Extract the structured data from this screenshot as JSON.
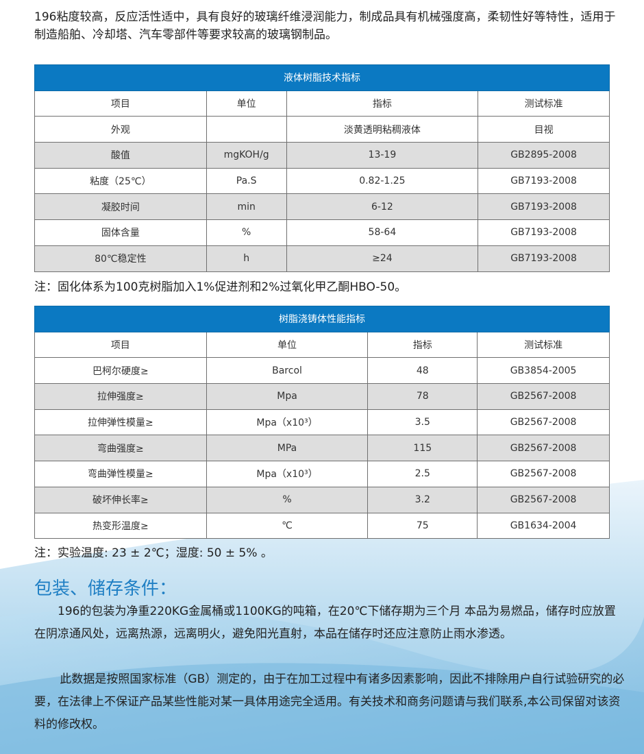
{
  "intro": "196粘度较高，反应活性适中，具有良好的玻璃纤维浸润能力，制成品具有机械强度高，柔韧性好等特性，适用于制造船舶、冷却塔、汽车零部件等要求较高的玻璃钢制品。",
  "table1": {
    "title": "液体树脂技术指标",
    "headers": [
      "项目",
      "单位",
      "指标",
      "测试标准"
    ],
    "rows": [
      [
        "外观",
        "",
        "淡黄透明粘稠液体",
        "目视"
      ],
      [
        "酸值",
        "mgKOH/g",
        "13-19",
        "GB2895-2008"
      ],
      [
        "粘度（25℃）",
        "Pa.S",
        "0.82-1.25",
        "GB7193-2008"
      ],
      [
        "凝胶时间",
        "min",
        "6-12",
        "GB7193-2008"
      ],
      [
        "固体含量",
        "%",
        "58-64",
        "GB7193-2008"
      ],
      [
        "80℃稳定性",
        "h",
        "≥24",
        "GB7193-2008"
      ]
    ]
  },
  "note1": "注：固化体系为100克树脂加入1%促进剂和2%过氧化甲乙酮HBO-50。",
  "table2": {
    "title": "树脂浇铸体性能指标",
    "headers": [
      "项目",
      "单位",
      "指标",
      "测试标准"
    ],
    "rows": [
      [
        "巴柯尔硬度≥",
        "Barcol",
        "48",
        "GB3854-2005"
      ],
      [
        "拉伸强度≥",
        "Mpa",
        "78",
        "GB2567-2008"
      ],
      [
        "拉伸弹性模量≥",
        "Mpa（x10³）",
        "3.5",
        "GB2567-2008"
      ],
      [
        "弯曲强度≥",
        "MPa",
        "115",
        "GB2567-2008"
      ],
      [
        "弯曲弹性模量≥",
        "Mpa（x10³）",
        "2.5",
        "GB2567-2008"
      ],
      [
        "破坏伸长率≥",
        "%",
        "3.2",
        "GB2567-2008"
      ],
      [
        "热变形温度≥",
        "℃",
        "75",
        "GB1634-2004"
      ]
    ]
  },
  "note2": "注：实验温度: 23 ± 2℃；湿度: 50 ± 5% 。",
  "section_title": "包装、储存条件：",
  "para1": "196的包装为净重220KG金属桶或1100KG的吨箱，在20℃下储存期为三个月 本品为易燃品，储存时应放置在阴凉通风处，远离热源，远离明火，避免阳光直射，本品在储存时还应注意防止雨水渗透。",
  "para2": "此数据是按照国家标准（GB）测定的，由于在加工过程中有诸多因素影响，因此不排除用户自行试验研究的必要，在法律上不保证产品某些性能对某一具体用途完全适用。有关技术和商务问题请与我们联系,本公司保留对该资料的修改权。",
  "colors": {
    "accent": "#0b79c2",
    "heading": "#1f7fc4",
    "row_gray": "#dedede"
  }
}
